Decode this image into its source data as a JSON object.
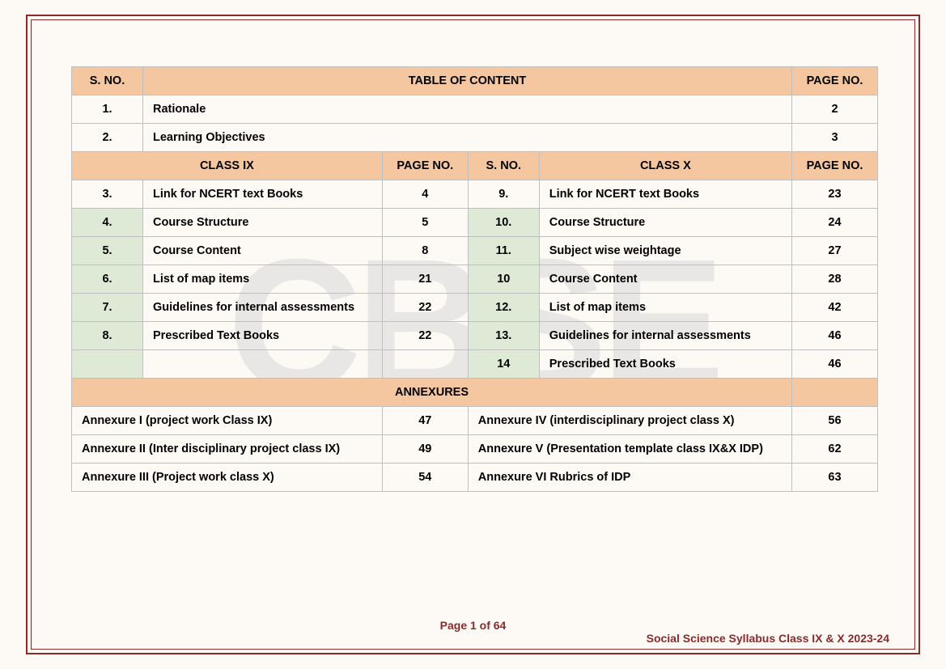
{
  "watermark": "CBSE",
  "headers": {
    "sno": "S. NO.",
    "toc": "TABLE OF CONTENT",
    "pageno": "PAGE NO.",
    "class9": "CLASS IX",
    "class10": "CLASS X",
    "annexures": "ANNEXURES"
  },
  "top_rows": [
    {
      "sno": "1.",
      "title": "Rationale",
      "page": "2"
    },
    {
      "sno": "2.",
      "title": "Learning Objectives",
      "page": "3"
    }
  ],
  "body_rows": [
    {
      "l_sno": "3.",
      "l_title": "Link for NCERT text Books",
      "l_pg": "4",
      "r_sno": "9.",
      "r_title": "Link for NCERT text Books",
      "r_pg": "23",
      "l_grn": false,
      "r_grn": false
    },
    {
      "l_sno": "4.",
      "l_title": "Course Structure",
      "l_pg": "5",
      "r_sno": "10.",
      "r_title": "Course Structure",
      "r_pg": "24",
      "l_grn": true,
      "r_grn": true
    },
    {
      "l_sno": "5.",
      "l_title": "Course Content",
      "l_pg": "8",
      "r_sno": "11.",
      "r_title": "Subject wise weightage",
      "r_pg": "27",
      "l_grn": true,
      "r_grn": true
    },
    {
      "l_sno": "6.",
      "l_title": "List of map items",
      "l_pg": "21",
      "r_sno": "10",
      "r_title": "Course Content",
      "r_pg": "28",
      "l_grn": true,
      "r_grn": true
    },
    {
      "l_sno": "7.",
      "l_title": "Guidelines for internal assessments",
      "l_pg": "22",
      "r_sno": "12.",
      "r_title": "List of map items",
      "r_pg": "42",
      "l_grn": true,
      "r_grn": true
    },
    {
      "l_sno": "8.",
      "l_title": "Prescribed Text Books",
      "l_pg": "22",
      "r_sno": "13.",
      "r_title": "Guidelines for internal assessments",
      "r_pg": "46",
      "l_grn": true,
      "r_grn": true
    },
    {
      "l_sno": "",
      "l_title": "",
      "l_pg": "",
      "r_sno": "14",
      "r_title": "Prescribed Text Books",
      "r_pg": "46",
      "l_grn": true,
      "r_grn": true
    }
  ],
  "annex_rows": [
    {
      "l_title": "Annexure I (project work Class IX)",
      "l_pg": "47",
      "r_title": "Annexure IV (interdisciplinary project class X)",
      "r_pg": "56"
    },
    {
      "l_title": "Annexure II (Inter disciplinary project class IX)",
      "l_pg": "49",
      "r_title": "Annexure V (Presentation template class IX&X IDP)",
      "r_pg": "62"
    },
    {
      "l_title": "Annexure III (Project work class X)",
      "l_pg": "54",
      "r_title": "Annexure VI Rubrics of IDP",
      "r_pg": "63"
    }
  ],
  "footer": {
    "page": "Page 1 of 64",
    "doc": "Social Science Syllabus Class IX & X 2023-24"
  },
  "colors": {
    "header_bg": "#f4c7a1",
    "green_bg": "#dfead6",
    "border": "#bfbfbf",
    "frame": "#8a2a2a",
    "page_bg": "#fdfaf6",
    "watermark": "#d9d9d9"
  }
}
